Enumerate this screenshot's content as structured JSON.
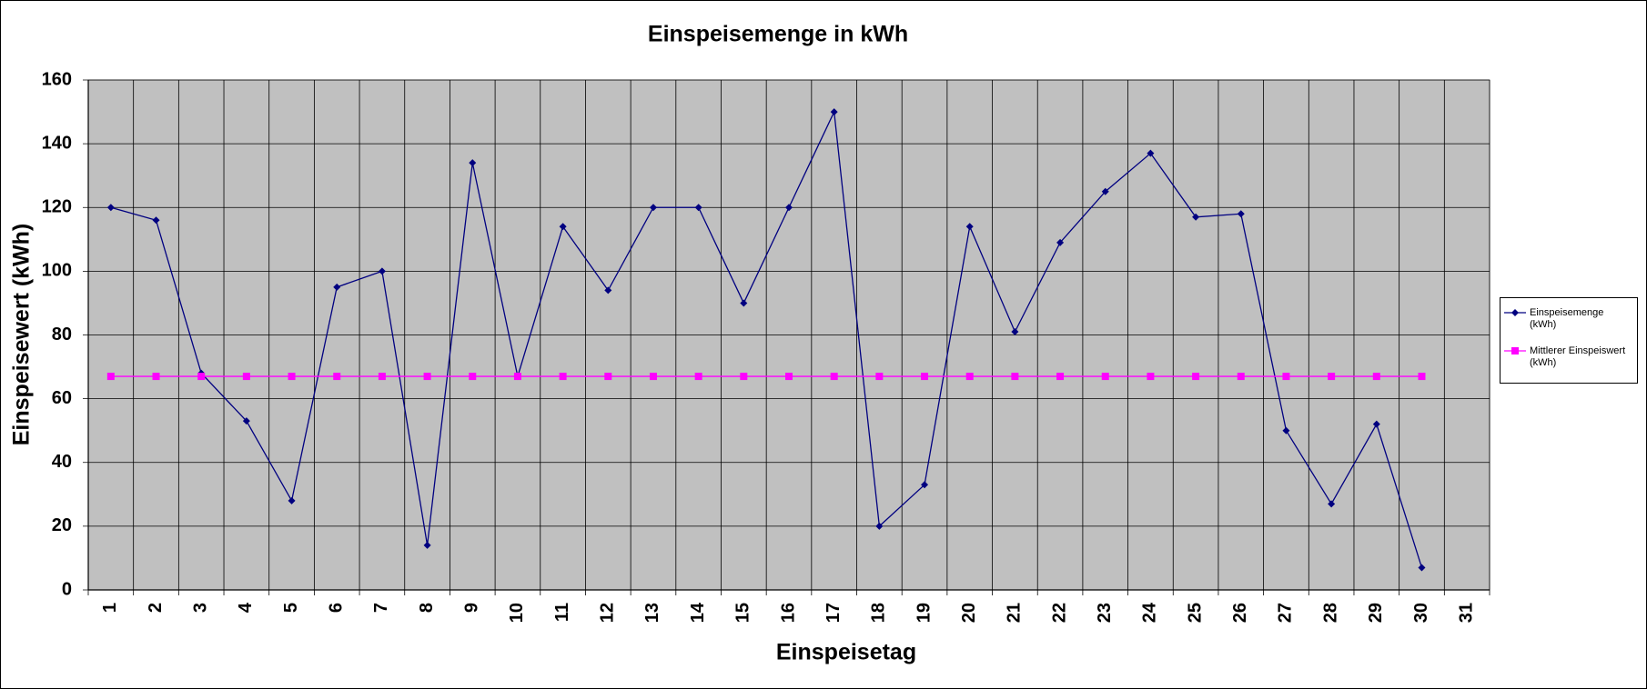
{
  "chart_data": {
    "type": "line",
    "title": "Einspeisemenge in kWh",
    "x_label": "Einspeisetag",
    "y_label": "Einspeisewert  (kWh)",
    "categories": [
      "1",
      "2",
      "3",
      "4",
      "5",
      "6",
      "7",
      "8",
      "9",
      "10",
      "11",
      "12",
      "13",
      "14",
      "15",
      "16",
      "17",
      "18",
      "19",
      "20",
      "21",
      "22",
      "23",
      "24",
      "25",
      "26",
      "27",
      "28",
      "29",
      "30",
      "31"
    ],
    "series": [
      {
        "name": "Einspeisemenge (kWh)",
        "color": "#000080",
        "marker": "diamond",
        "values": [
          120,
          116,
          68,
          53,
          28,
          95,
          100,
          14,
          134,
          67,
          114,
          94,
          120,
          120,
          90,
          120,
          150,
          20,
          33,
          114,
          81,
          109,
          125,
          137,
          117,
          118,
          50,
          27,
          52,
          7,
          null
        ]
      },
      {
        "name": "Mittlerer Einspeiswert (kWh)",
        "color": "#ff00ff",
        "marker": "square",
        "values": [
          67,
          67,
          67,
          67,
          67,
          67,
          67,
          67,
          67,
          67,
          67,
          67,
          67,
          67,
          67,
          67,
          67,
          67,
          67,
          67,
          67,
          67,
          67,
          67,
          67,
          67,
          67,
          67,
          67,
          67,
          null
        ]
      }
    ],
    "ylim": [
      0,
      160
    ],
    "yticks": [
      0,
      20,
      40,
      60,
      80,
      100,
      120,
      140,
      160
    ],
    "grid": true,
    "legend": "right",
    "plot_background": "#c0c0c0"
  }
}
